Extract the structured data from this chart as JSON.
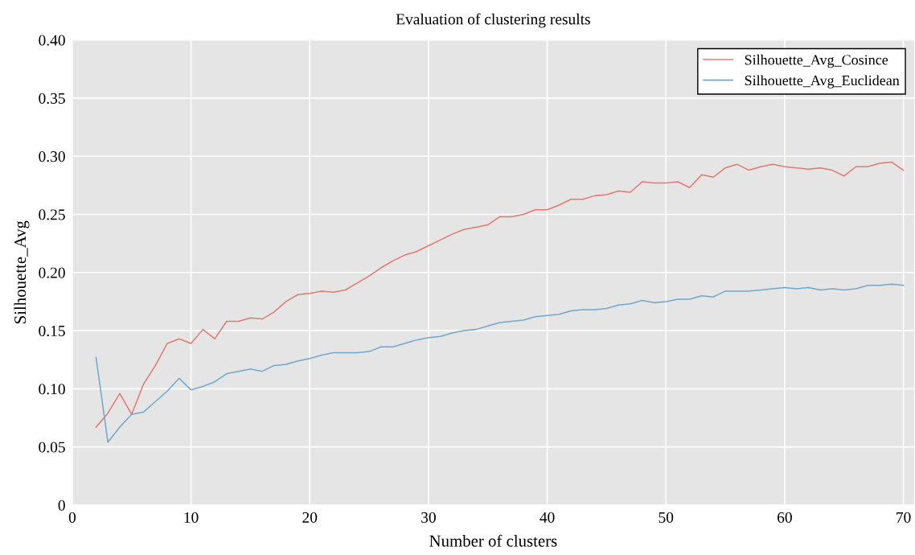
{
  "chart_data": {
    "type": "line",
    "title": "Evaluation of clustering results",
    "xlabel": "Number of clusters",
    "ylabel": "Silhouette_Avg",
    "x": [
      2,
      3,
      4,
      5,
      6,
      7,
      8,
      9,
      10,
      11,
      12,
      13,
      14,
      15,
      16,
      17,
      18,
      19,
      20,
      21,
      22,
      23,
      24,
      25,
      26,
      27,
      28,
      29,
      30,
      31,
      32,
      33,
      34,
      35,
      36,
      37,
      38,
      39,
      40,
      41,
      42,
      43,
      44,
      45,
      46,
      47,
      48,
      49,
      50,
      51,
      52,
      53,
      54,
      55,
      56,
      57,
      58,
      59,
      60,
      61,
      62,
      63,
      64,
      65,
      66,
      67,
      68,
      69,
      70
    ],
    "series": [
      {
        "name": "Silhouette_Avg_Cosince",
        "color": "#e07b6e",
        "values": [
          0.067,
          0.079,
          0.096,
          0.078,
          0.104,
          0.12,
          0.139,
          0.143,
          0.139,
          0.151,
          0.143,
          0.158,
          0.158,
          0.161,
          0.16,
          0.166,
          0.175,
          0.181,
          0.182,
          0.184,
          0.183,
          0.185,
          0.191,
          0.197,
          0.204,
          0.21,
          0.215,
          0.218,
          0.223,
          0.228,
          0.233,
          0.237,
          0.239,
          0.241,
          0.248,
          0.248,
          0.25,
          0.254,
          0.254,
          0.258,
          0.263,
          0.263,
          0.266,
          0.267,
          0.27,
          0.269,
          0.278,
          0.277,
          0.277,
          0.278,
          0.273,
          0.284,
          0.282,
          0.29,
          0.293,
          0.288,
          0.291,
          0.293,
          0.291,
          0.29,
          0.289,
          0.29,
          0.288,
          0.283,
          0.291,
          0.291,
          0.294,
          0.295,
          0.288
        ]
      },
      {
        "name": "Silhouette_Avg_Euclidean",
        "color": "#6fa8cc",
        "values": [
          0.127,
          0.054,
          0.067,
          0.078,
          0.08,
          0.089,
          0.098,
          0.109,
          0.099,
          0.102,
          0.106,
          0.113,
          0.115,
          0.117,
          0.115,
          0.12,
          0.121,
          0.124,
          0.126,
          0.129,
          0.131,
          0.131,
          0.131,
          0.132,
          0.136,
          0.136,
          0.139,
          0.142,
          0.144,
          0.145,
          0.148,
          0.15,
          0.151,
          0.154,
          0.157,
          0.158,
          0.159,
          0.162,
          0.163,
          0.164,
          0.167,
          0.168,
          0.168,
          0.169,
          0.172,
          0.173,
          0.176,
          0.174,
          0.175,
          0.177,
          0.177,
          0.18,
          0.179,
          0.184,
          0.184,
          0.184,
          0.185,
          0.186,
          0.187,
          0.186,
          0.187,
          0.185,
          0.186,
          0.185,
          0.186,
          0.189,
          0.189,
          0.19,
          0.189
        ]
      }
    ],
    "xlim": [
      0,
      70.9
    ],
    "xticks": [
      0,
      10,
      20,
      30,
      40,
      50,
      60,
      70
    ],
    "ylim": [
      0,
      0.4
    ],
    "yticks": [
      0,
      0.05,
      {
        "value": 0.1,
        "label": "0.10"
      },
      0.15,
      {
        "value": 0.2,
        "label": "0.20"
      },
      0.25,
      {
        "value": 0.3,
        "label": "0.30"
      },
      0.35,
      {
        "value": 0.4,
        "label": "0.40"
      }
    ],
    "grid": true,
    "legend": "top right"
  }
}
